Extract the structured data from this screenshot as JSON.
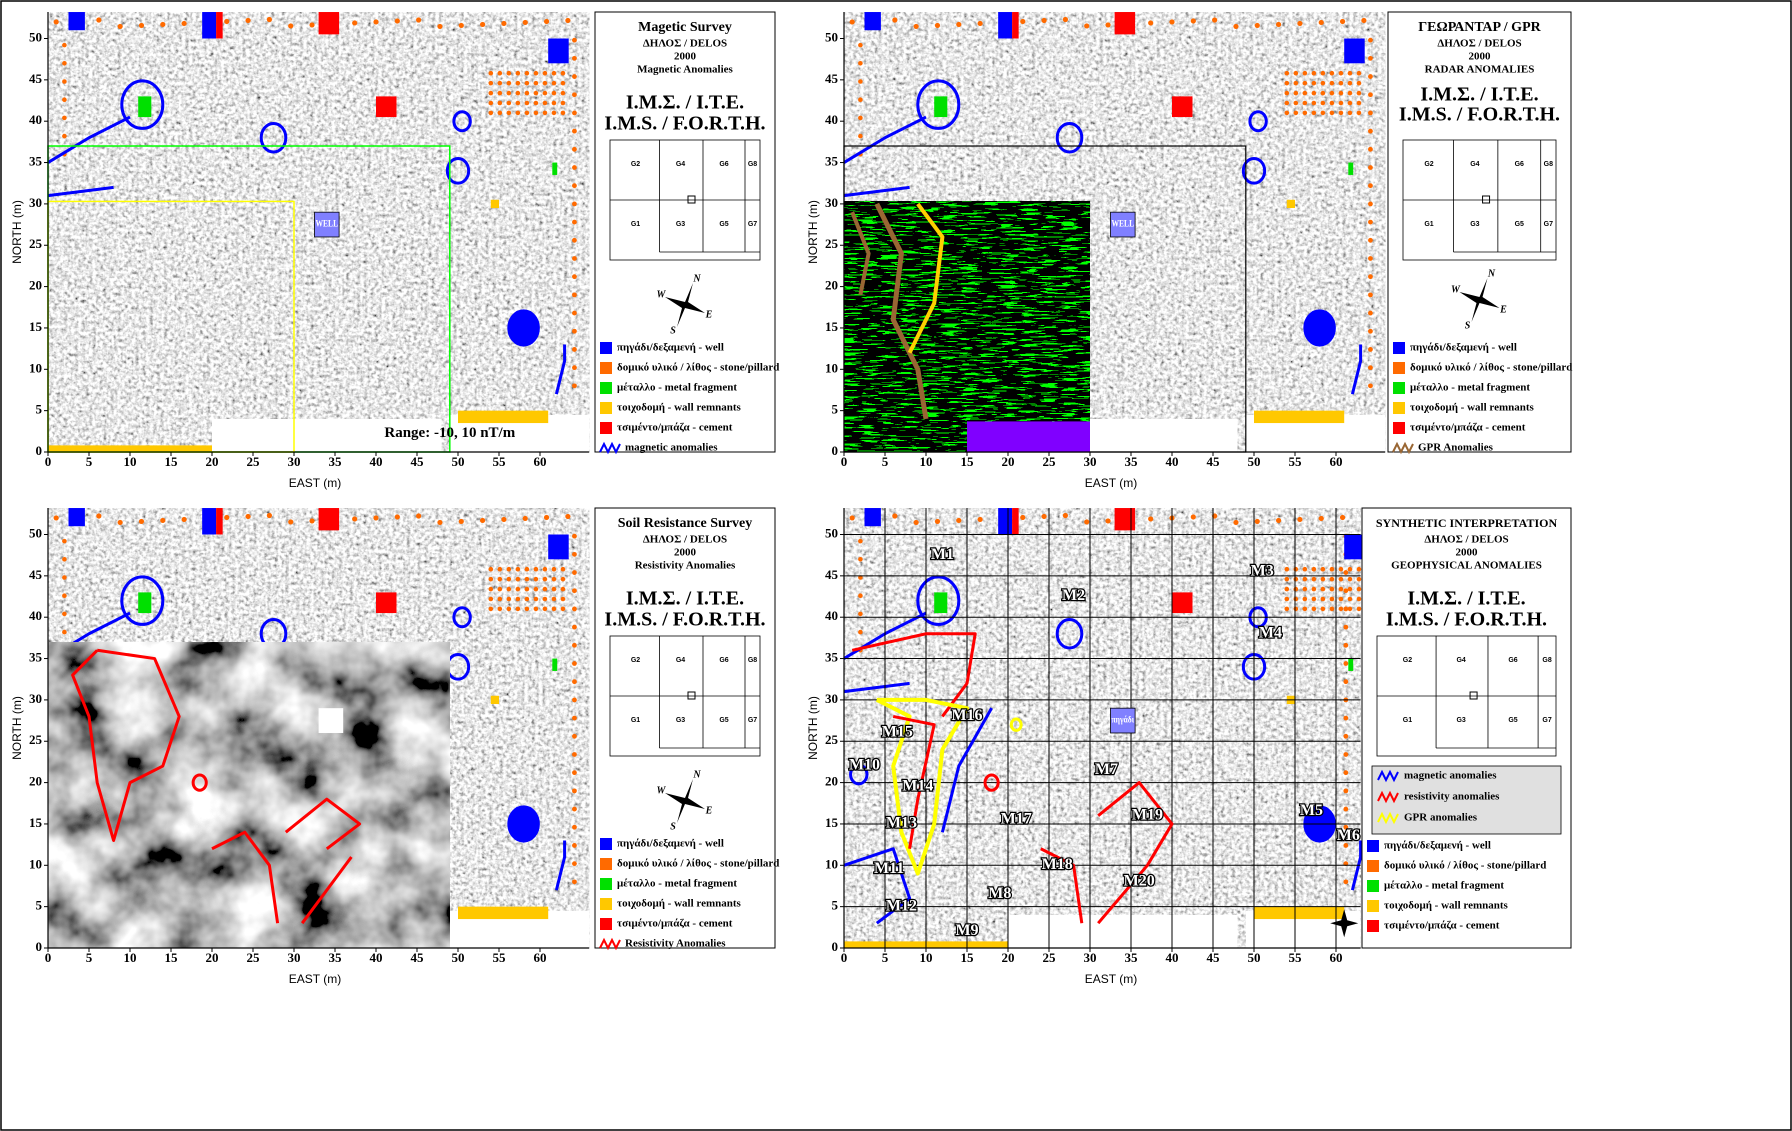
{
  "axes": {
    "x_label": "EAST (m)",
    "y_label": "NORTH (m)",
    "x_ticks": [
      0,
      5,
      10,
      15,
      20,
      25,
      30,
      35,
      40,
      45,
      50,
      55,
      60
    ],
    "y_ticks": [
      0,
      5,
      10,
      15,
      20,
      25,
      30,
      35,
      40,
      45,
      50
    ]
  },
  "institute": [
    "Ι.Μ.Σ. / Ι.Τ.Ε.",
    "I.M.S. / F.O.R.T.H."
  ],
  "grid_labels": {
    "top": [
      "G2",
      "G4",
      "G6",
      "G8"
    ],
    "bottom": [
      "G1",
      "G3",
      "G5",
      "G7"
    ]
  },
  "compass": [
    "N",
    "E",
    "S",
    "W"
  ],
  "common_legend": [
    {
      "label": "πηγάδι/δεξαμενή - well",
      "color": "#0000ff"
    },
    {
      "label": "δομικό υλικό / λίθος - stone/pillard",
      "color": "#ff6a00"
    },
    {
      "label": "μέταλλο - metal fragment",
      "color": "#00e000"
    },
    {
      "label": "τοιχοδομή - wall remnants",
      "color": "#ffc800"
    },
    {
      "label": "τσιμέντο/μπάζα - cement",
      "color": "#ff0000"
    }
  ],
  "panels": [
    {
      "title": [
        "Magetic Survey",
        "ΔΗΛΟΣ / DELOS",
        "2000",
        "Magnetic Anomalies"
      ],
      "legend_extra": [
        {
          "label": "magnetic anomalies",
          "color": "#0000ff"
        }
      ],
      "annotation": "Range: -10, 10 nT/m",
      "well_label": "WELL"
    },
    {
      "title": [
        "ΓΕΩΡΑΝΤΑΡ / GPR",
        "ΔΗΛΟΣ / DELOS",
        "2000",
        "RADAR ANOMALIES"
      ],
      "legend_extra": [
        {
          "label": "GPR Anomalies",
          "color": "#996633"
        }
      ],
      "well_label": "WELL"
    },
    {
      "title": [
        "Soil Resistance Survey",
        "ΔΗΛΟΣ / DELOS",
        "2000",
        "Resistivity Anomalies"
      ],
      "legend_extra": [
        {
          "label": "Resistivity Anomalies",
          "color": "#ff0000"
        }
      ]
    },
    {
      "title": [
        "SYNTHETIC INTERPRETATION",
        "ΔΗΛΟΣ / DELOS",
        "2000",
        "GEOPHYSICAL ANOMALIES"
      ],
      "legend_box": [
        {
          "label": "magnetic anomalies",
          "color": "#0000ff"
        },
        {
          "label": "resistivity anomalies",
          "color": "#ff0000"
        },
        {
          "label": "GPR anomalies",
          "color": "#ffff00"
        }
      ],
      "well_label": "πηγάδι",
      "anomaly_labels": [
        "M1",
        "M2",
        "M3",
        "M4",
        "M5",
        "M6",
        "M7",
        "M8",
        "M9",
        "M10",
        "M11",
        "M12",
        "M13",
        "M14",
        "M15",
        "M16",
        "M17",
        "M18",
        "M19",
        "M20"
      ]
    }
  ]
}
